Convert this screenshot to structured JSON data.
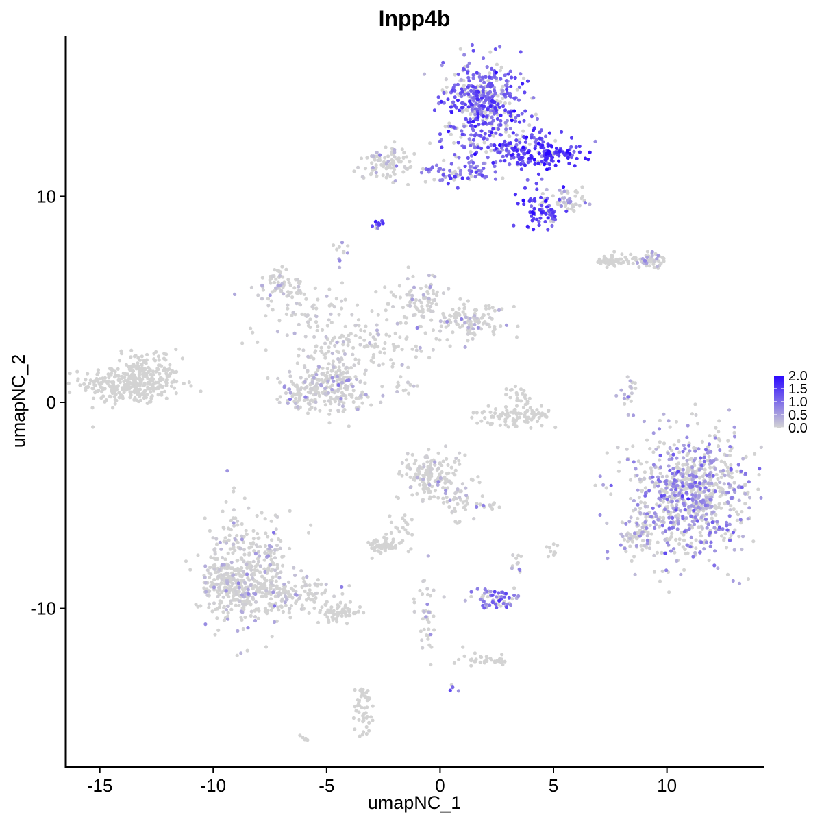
{
  "chart_data": {
    "type": "scatter",
    "title": "Inpp4b",
    "xlabel": "umapNC_1",
    "ylabel": "umapNC_2",
    "xlim": [
      -16.5,
      14.3
    ],
    "ylim": [
      -17.7,
      17.8
    ],
    "x_ticks": [
      -15,
      -10,
      -5,
      0,
      5,
      10
    ],
    "x_tick_labels": [
      "-15",
      "-10",
      "-5",
      "0",
      "5",
      "10"
    ],
    "y_ticks": [
      -10,
      0,
      10
    ],
    "y_tick_labels": [
      "-10",
      "0",
      "10"
    ],
    "grid": false,
    "legend": {
      "placement": "right",
      "type": "colorbar",
      "min": 0,
      "max": 2.0,
      "ticks": [
        2.0,
        1.5,
        1.0,
        0.5,
        0.0
      ],
      "tick_labels": [
        "2.0",
        "1.5",
        "1.0",
        "0.5",
        "0.0"
      ],
      "low_color": "#d3d3d3",
      "high_color": "#2b08ff"
    },
    "point_color_default": "#d3d3d3",
    "clusters": [
      {
        "cx": -13.6,
        "cy": 0.9,
        "sx": 1.1,
        "sy": 0.5,
        "n": 320,
        "expr": 0.0
      },
      {
        "cx": -13.0,
        "cy": 1.8,
        "sx": 0.7,
        "sy": 0.4,
        "n": 60,
        "expr": 0.0
      },
      {
        "cx": -8.5,
        "cy": -8.2,
        "sx": 0.9,
        "sy": 1.4,
        "n": 380,
        "expr": 0.1
      },
      {
        "cx": -9.6,
        "cy": -8.8,
        "sx": 0.6,
        "sy": 0.6,
        "n": 120,
        "expr": 0.05
      },
      {
        "cx": -6.5,
        "cy": -9.3,
        "sx": 1.1,
        "sy": 0.4,
        "n": 150,
        "expr": 0.02
      },
      {
        "cx": -4.5,
        "cy": -10.2,
        "sx": 0.5,
        "sy": 0.2,
        "n": 60,
        "expr": 0.0
      },
      {
        "cx": -2.4,
        "cy": 11.6,
        "sx": 0.7,
        "sy": 0.4,
        "n": 90,
        "expr": 0.02
      },
      {
        "cx": 1.9,
        "cy": 14.5,
        "sx": 0.9,
        "sy": 1.0,
        "n": 430,
        "expr": 1.1
      },
      {
        "cx": 3.4,
        "cy": 12.3,
        "sx": 1.2,
        "sy": 0.6,
        "n": 180,
        "expr": 1.3
      },
      {
        "cx": 5.0,
        "cy": 12.0,
        "sx": 0.7,
        "sy": 0.3,
        "n": 70,
        "expr": 1.6
      },
      {
        "cx": 0.8,
        "cy": 11.1,
        "sx": 0.8,
        "sy": 0.3,
        "n": 70,
        "expr": 0.9
      },
      {
        "cx": 4.4,
        "cy": 9.3,
        "sx": 0.5,
        "sy": 0.6,
        "n": 70,
        "expr": 1.4
      },
      {
        "cx": 5.6,
        "cy": 9.7,
        "sx": 0.5,
        "sy": 0.3,
        "n": 50,
        "expr": 0.4
      },
      {
        "cx": -2.8,
        "cy": 8.6,
        "sx": 0.1,
        "sy": 0.1,
        "n": 12,
        "expr": 1.2
      },
      {
        "cx": -4.4,
        "cy": 7.3,
        "sx": 0.2,
        "sy": 0.3,
        "n": 10,
        "expr": 0.3
      },
      {
        "cx": -7.0,
        "cy": 5.6,
        "sx": 0.5,
        "sy": 0.4,
        "n": 70,
        "expr": 0.1
      },
      {
        "cx": -5.5,
        "cy": 4.0,
        "sx": 1.2,
        "sy": 1.0,
        "n": 80,
        "expr": 0.05
      },
      {
        "cx": -1.0,
        "cy": 5.0,
        "sx": 0.6,
        "sy": 0.6,
        "n": 80,
        "expr": 0.05
      },
      {
        "cx": 1.3,
        "cy": 4.0,
        "sx": 0.8,
        "sy": 0.4,
        "n": 120,
        "expr": 0.05
      },
      {
        "cx": -2.5,
        "cy": 3.0,
        "sx": 1.5,
        "sy": 0.7,
        "n": 80,
        "expr": 0.05
      },
      {
        "cx": -6.0,
        "cy": 0.6,
        "sx": 0.6,
        "sy": 0.6,
        "n": 120,
        "expr": 0.1
      },
      {
        "cx": -4.2,
        "cy": 0.6,
        "sx": 0.5,
        "sy": 0.6,
        "n": 120,
        "expr": 0.1
      },
      {
        "cx": -4.8,
        "cy": 1.9,
        "sx": 0.5,
        "sy": 0.6,
        "n": 60,
        "expr": 0.05
      },
      {
        "cx": -1.6,
        "cy": 0.8,
        "sx": 0.6,
        "sy": 0.3,
        "n": 15,
        "expr": 0.1
      },
      {
        "cx": 3.4,
        "cy": -0.7,
        "sx": 0.8,
        "sy": 0.3,
        "n": 100,
        "expr": 0.0
      },
      {
        "cx": 3.5,
        "cy": 0.4,
        "sx": 0.3,
        "sy": 0.3,
        "n": 20,
        "expr": 0.0
      },
      {
        "cx": 7.6,
        "cy": 6.9,
        "sx": 0.5,
        "sy": 0.15,
        "n": 50,
        "expr": 0.0
      },
      {
        "cx": 9.3,
        "cy": 6.9,
        "sx": 0.4,
        "sy": 0.2,
        "n": 50,
        "expr": 0.3
      },
      {
        "cx": 8.3,
        "cy": 0.5,
        "sx": 0.2,
        "sy": 0.6,
        "n": 20,
        "expr": 0.2
      },
      {
        "cx": 11.0,
        "cy": -4.5,
        "sx": 1.3,
        "sy": 1.5,
        "n": 850,
        "expr": 0.55
      },
      {
        "cx": 8.6,
        "cy": -6.5,
        "sx": 0.4,
        "sy": 0.5,
        "n": 60,
        "expr": 0.2
      },
      {
        "cx": -0.4,
        "cy": -3.5,
        "sx": 0.6,
        "sy": 0.6,
        "n": 150,
        "expr": 0.03
      },
      {
        "cx": 0.8,
        "cy": -4.8,
        "sx": 0.4,
        "sy": 0.6,
        "n": 40,
        "expr": 0.1
      },
      {
        "cx": -2.4,
        "cy": -6.9,
        "sx": 0.4,
        "sy": 0.2,
        "n": 60,
        "expr": 0.0
      },
      {
        "cx": -1.5,
        "cy": -5.8,
        "sx": 0.3,
        "sy": 0.6,
        "n": 20,
        "expr": 0.0
      },
      {
        "cx": 2.4,
        "cy": -9.5,
        "sx": 0.5,
        "sy": 0.3,
        "n": 60,
        "expr": 0.9
      },
      {
        "cx": 3.3,
        "cy": -7.8,
        "sx": 0.2,
        "sy": 0.4,
        "n": 12,
        "expr": 0.3
      },
      {
        "cx": 5.0,
        "cy": -7.2,
        "sx": 0.2,
        "sy": 0.2,
        "n": 10,
        "expr": 0.0
      },
      {
        "cx": 2.0,
        "cy": -5.0,
        "sx": 0.4,
        "sy": 0.1,
        "n": 12,
        "expr": 0.2
      },
      {
        "cx": -0.6,
        "cy": -10.5,
        "sx": 0.3,
        "sy": 1.0,
        "n": 40,
        "expr": 0.05
      },
      {
        "cx": 2.0,
        "cy": -12.5,
        "sx": 0.6,
        "sy": 0.2,
        "n": 35,
        "expr": 0.0
      },
      {
        "cx": -3.4,
        "cy": -14.8,
        "sx": 0.2,
        "sy": 0.6,
        "n": 50,
        "expr": 0.0
      },
      {
        "cx": -6.0,
        "cy": -16.3,
        "sx": 0.1,
        "sy": 0.1,
        "n": 5,
        "expr": 0.0
      },
      {
        "cx": 0.6,
        "cy": -13.9,
        "sx": 0.1,
        "sy": 0.1,
        "n": 4,
        "expr": 0.8
      }
    ]
  }
}
